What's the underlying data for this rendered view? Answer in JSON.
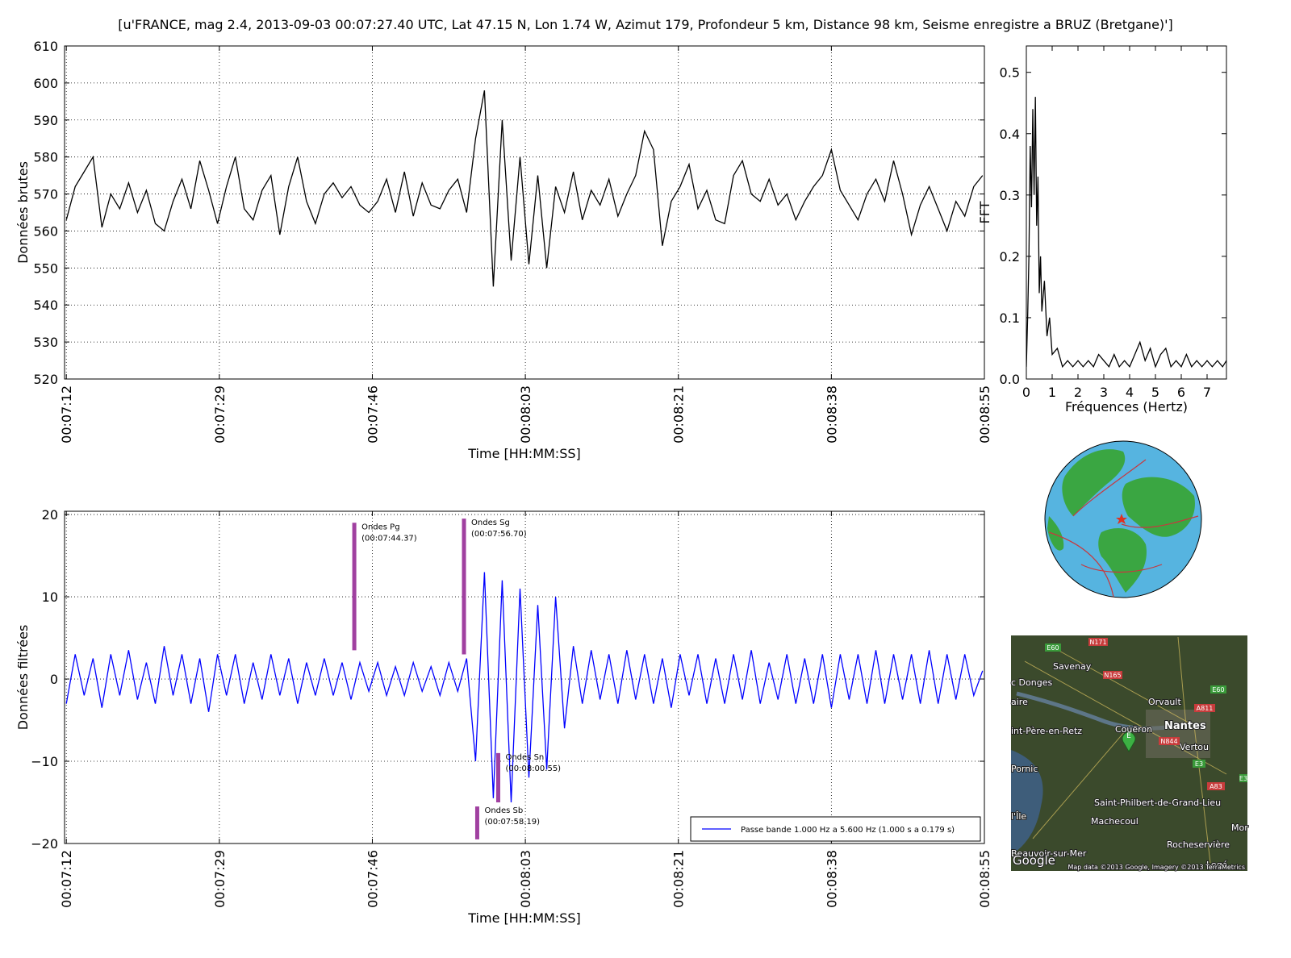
{
  "chart_data": [
    {
      "type": "line",
      "title": "[u'FRANCE, mag 2.4, 2013-09-03 00:07:27.40 UTC, Lat 47.15 N, Lon 1.74 W, Azimut 179, Profondeur 5 km, Distance 98 km, Seisme enregistre a BRUZ (Bretgane)']",
      "ylabel": "Données brutes",
      "xlabel": "Time [HH:MM:SS]",
      "color": "#000000",
      "grid": true,
      "xtick_rotation": 90,
      "xlim": [
        431.8,
        535.2
      ],
      "ylim": [
        520,
        610
      ],
      "xticks": [
        {
          "value": 432.0,
          "label": "00:07:12"
        },
        {
          "value": 449.2,
          "label": "00:07:29"
        },
        {
          "value": 466.4,
          "label": "00:07:46"
        },
        {
          "value": 483.6,
          "label": "00:08:03"
        },
        {
          "value": 500.8,
          "label": "00:08:21"
        },
        {
          "value": 518.0,
          "label": "00:08:38"
        },
        {
          "value": 535.2,
          "label": "00:08:55"
        }
      ],
      "yticks": [
        520,
        530,
        540,
        550,
        560,
        570,
        580,
        590,
        600,
        610
      ],
      "x": [
        432,
        433,
        434,
        435,
        436,
        437,
        438,
        439,
        440,
        441,
        442,
        443,
        444,
        445,
        446,
        447,
        448,
        449,
        450,
        451,
        452,
        453,
        454,
        455,
        456,
        457,
        458,
        459,
        460,
        461,
        462,
        463,
        464,
        465,
        466,
        467,
        468,
        469,
        470,
        471,
        472,
        473,
        474,
        475,
        476,
        477,
        478,
        479,
        480,
        481,
        482,
        483,
        484,
        485,
        486,
        487,
        488,
        489,
        490,
        491,
        492,
        493,
        494,
        495,
        496,
        497,
        498,
        499,
        500,
        501,
        502,
        503,
        504,
        505,
        506,
        507,
        508,
        509,
        510,
        511,
        512,
        513,
        514,
        515,
        516,
        517,
        518,
        519,
        520,
        521,
        522,
        523,
        524,
        525,
        526,
        527,
        528,
        529,
        530,
        531,
        532,
        533,
        534,
        535
      ],
      "values": [
        563,
        572,
        576,
        580,
        561,
        570,
        566,
        573,
        565,
        571,
        562,
        560,
        568,
        574,
        566,
        579,
        571,
        562,
        572,
        580,
        566,
        563,
        571,
        575,
        559,
        572,
        580,
        568,
        562,
        570,
        573,
        569,
        572,
        567,
        565,
        568,
        574,
        565,
        576,
        564,
        573,
        567,
        566,
        571,
        574,
        565,
        585,
        598,
        545,
        590,
        552,
        580,
        551,
        575,
        550,
        572,
        565,
        576,
        563,
        571,
        567,
        574,
        564,
        570,
        575,
        587,
        582,
        556,
        568,
        572,
        578,
        566,
        571,
        563,
        562,
        575,
        579,
        570,
        568,
        574,
        567,
        570,
        563,
        568,
        572,
        575,
        582,
        571,
        567,
        563,
        570,
        574,
        568,
        579,
        570,
        559,
        567,
        572,
        566,
        560,
        568,
        564,
        572,
        575
      ]
    },
    {
      "type": "line",
      "ylabel": "FFT",
      "xlabel": "Fréquences (Hertz)",
      "color": "#000000",
      "grid": false,
      "xlim": [
        0,
        7.75
      ],
      "ylim": [
        0,
        0.543
      ],
      "xticks": [
        0,
        1,
        2,
        3,
        4,
        5,
        6,
        7
      ],
      "yticks": [
        {
          "value": 0,
          "label": "0.0"
        },
        0.1,
        0.2,
        0.3,
        0.4,
        0.5
      ],
      "x": [
        0,
        0.05,
        0.1,
        0.15,
        0.2,
        0.25,
        0.3,
        0.35,
        0.4,
        0.45,
        0.5,
        0.55,
        0.6,
        0.7,
        0.8,
        0.9,
        1.0,
        1.2,
        1.4,
        1.6,
        1.8,
        2.0,
        2.2,
        2.4,
        2.6,
        2.8,
        3.0,
        3.2,
        3.4,
        3.6,
        3.8,
        4.0,
        4.2,
        4.4,
        4.6,
        4.8,
        5.0,
        5.2,
        5.4,
        5.6,
        5.8,
        6.0,
        6.2,
        6.4,
        6.6,
        6.8,
        7.0,
        7.2,
        7.4,
        7.6,
        7.75
      ],
      "values": [
        0.02,
        0.1,
        0.2,
        0.38,
        0.28,
        0.44,
        0.3,
        0.46,
        0.25,
        0.33,
        0.14,
        0.2,
        0.11,
        0.16,
        0.07,
        0.1,
        0.04,
        0.05,
        0.02,
        0.03,
        0.02,
        0.03,
        0.02,
        0.03,
        0.02,
        0.04,
        0.03,
        0.02,
        0.04,
        0.02,
        0.03,
        0.02,
        0.04,
        0.06,
        0.03,
        0.05,
        0.02,
        0.04,
        0.05,
        0.02,
        0.03,
        0.02,
        0.04,
        0.02,
        0.03,
        0.02,
        0.03,
        0.02,
        0.03,
        0.02,
        0.03
      ]
    },
    {
      "type": "line",
      "ylabel": "Données filtrées",
      "xlabel": "Time [HH:MM:SS]",
      "grid": true,
      "xtick_rotation": 90,
      "legend": "lower right",
      "xlim": [
        431.8,
        535.2
      ],
      "ylim": [
        -20,
        20.4
      ],
      "xticks": [
        {
          "value": 432.0,
          "label": "00:07:12"
        },
        {
          "value": 449.2,
          "label": "00:07:29"
        },
        {
          "value": 466.4,
          "label": "00:07:46"
        },
        {
          "value": 483.6,
          "label": "00:08:03"
        },
        {
          "value": 500.8,
          "label": "00:08:21"
        },
        {
          "value": 518.0,
          "label": "00:08:38"
        },
        {
          "value": 535.2,
          "label": "00:08:55"
        }
      ],
      "yticks": [
        {
          "value": -20,
          "label": "−20"
        },
        {
          "value": -10,
          "label": "−10"
        },
        0,
        10,
        20
      ],
      "x": [
        432,
        433,
        434,
        435,
        436,
        437,
        438,
        439,
        440,
        441,
        442,
        443,
        444,
        445,
        446,
        447,
        448,
        449,
        450,
        451,
        452,
        453,
        454,
        455,
        456,
        457,
        458,
        459,
        460,
        461,
        462,
        463,
        464,
        465,
        466,
        467,
        468,
        469,
        470,
        471,
        472,
        473,
        474,
        475,
        476,
        477,
        478,
        479,
        480,
        481,
        482,
        483,
        484,
        485,
        486,
        487,
        488,
        489,
        490,
        491,
        492,
        493,
        494,
        495,
        496,
        497,
        498,
        499,
        500,
        501,
        502,
        503,
        504,
        505,
        506,
        507,
        508,
        509,
        510,
        511,
        512,
        513,
        514,
        515,
        516,
        517,
        518,
        519,
        520,
        521,
        522,
        523,
        524,
        525,
        526,
        527,
        528,
        529,
        530,
        531,
        532,
        533,
        534,
        535
      ],
      "series": [
        {
          "name": "Passe bande 1.000 Hz a 5.600 Hz (1.000 s a 0.179 s)",
          "color": "#0000ff",
          "values": [
            -3,
            3,
            -2,
            2.5,
            -3.5,
            3,
            -2,
            3.5,
            -2.5,
            2,
            -3,
            4,
            -2,
            3,
            -3,
            2.5,
            -4,
            3,
            -2,
            3,
            -3,
            2,
            -2.5,
            3,
            -2,
            2.5,
            -3,
            2,
            -2,
            2.5,
            -2,
            2,
            -2.5,
            2,
            -1.5,
            2,
            -2,
            1.5,
            -2,
            2,
            -1.5,
            1.5,
            -2,
            2,
            -1.5,
            2.5,
            -10,
            13,
            -14.5,
            12,
            -15,
            11,
            -12,
            9,
            -11,
            10,
            -6,
            4,
            -3,
            3.5,
            -2.5,
            3,
            -3,
            3.5,
            -2.5,
            3,
            -3,
            2.5,
            -3.5,
            3,
            -2,
            3,
            -3,
            2.5,
            -3,
            3,
            -2.5,
            3.5,
            -3,
            2,
            -2.5,
            3,
            -3,
            2.5,
            -3,
            3,
            -3.5,
            3,
            -2.5,
            3,
            -3,
            3.5,
            -3,
            3,
            -2.5,
            3,
            -3,
            3.5,
            -3,
            3,
            -2.5,
            3,
            -2,
            1
          ]
        }
      ],
      "annotations": [
        {
          "text": "Ondes Pg",
          "time": "(00:07:44.37)",
          "x": 464.37,
          "y": [
            3.5,
            19
          ]
        },
        {
          "text": "Ondes Sg",
          "time": "(00:07:56.70)",
          "x": 476.7,
          "y": [
            3,
            19.5
          ]
        },
        {
          "text": "Ondes Sn",
          "time": "(00:08:00.55)",
          "x": 480.55,
          "y": [
            -15,
            -9
          ]
        },
        {
          "text": "Ondes Sb",
          "time": "(00:07:58.19)",
          "x": 478.19,
          "y": [
            -19.5,
            -15.5
          ]
        }
      ],
      "annotation_color": "#a040a0"
    }
  ],
  "map": {
    "labels": [
      "Savenay",
      "c Donges",
      "Orvault",
      "Nantes",
      "aire",
      "int-Père-en-Retz",
      "Couëron",
      "Vertou",
      "Pornic",
      "Saint-Philbert-de-Grand-Lieu",
      "Machecoul",
      "Rocheservière",
      "Beauvoir-sur-Mer",
      "l'Île",
      "Mor",
      "Legé",
      "Google",
      "Map data ©2013 Google, Imagery ©2013 TerraMetrics"
    ],
    "signs": [
      "E60",
      "N171",
      "N165",
      "A811",
      "E60",
      "N844",
      "E3",
      "A83",
      "E3"
    ],
    "marker": "E"
  }
}
